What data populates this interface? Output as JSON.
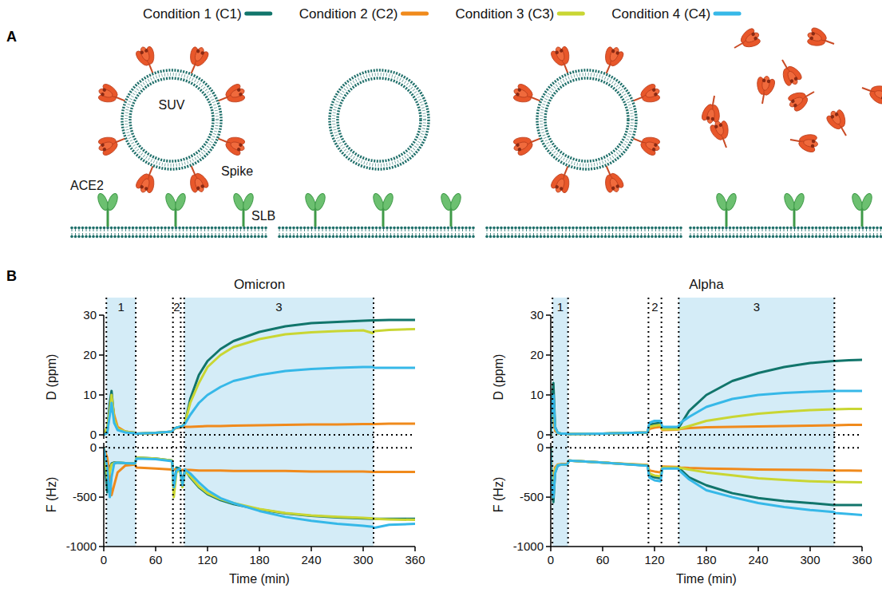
{
  "diagram": {
    "letter": "A",
    "labels": {
      "suv": "SUV",
      "spike": "Spike",
      "ace2": "ACE2",
      "slb": "SLB"
    },
    "panels": [
      {
        "suv": true,
        "spike_on_suv": true,
        "ace2": true,
        "free_spike": false
      },
      {
        "suv": true,
        "spike_on_suv": false,
        "ace2": true,
        "free_spike": false
      },
      {
        "suv": true,
        "spike_on_suv": true,
        "ace2": false,
        "free_spike": false
      },
      {
        "suv": false,
        "spike_on_suv": false,
        "ace2": true,
        "free_spike": true
      }
    ]
  },
  "charts_letter": "B",
  "chart_data": [
    {
      "type": "line",
      "title": "Omicron",
      "x_label": "Time (min)",
      "xlim": [
        0,
        360
      ],
      "xticks": [
        0,
        60,
        120,
        180,
        240,
        300,
        360
      ],
      "x": [
        0,
        4,
        7,
        9,
        12,
        16,
        25,
        36,
        38,
        60,
        79,
        81,
        84,
        88,
        91,
        94,
        100,
        110,
        120,
        135,
        150,
        180,
        210,
        240,
        270,
        300,
        311,
        313,
        330,
        360
      ],
      "phases": [
        {
          "label": "1",
          "start": 3,
          "end": 37,
          "shaded": true
        },
        {
          "label": "2",
          "start": 80,
          "end": 89,
          "shaded": false
        },
        {
          "label": "3",
          "start": 93,
          "end": 312,
          "shaded": true
        }
      ],
      "panels": [
        {
          "y_label": "D (ppm)",
          "ylim": [
            -1,
            30
          ],
          "yticks": [
            0,
            10,
            20,
            30
          ],
          "hline": 0,
          "tick_labels": "y",
          "series": [
            {
              "name": "Condition 1 (C1)",
              "color": "#11756b",
              "values": [
                0,
                0.5,
                8,
                11,
                4,
                1.5,
                0.8,
                0.5,
                0.3,
                0.5,
                0.8,
                1.5,
                1.8,
                2,
                2.2,
                3,
                9,
                15,
                18.5,
                21.5,
                23.5,
                25.8,
                27.2,
                28,
                28.3,
                28.6,
                28.7,
                28.7,
                28.8,
                28.8
              ]
            },
            {
              "name": "Condition 2 (C2)",
              "color": "#f08a1c",
              "values": [
                0,
                1,
                6,
                9,
                5,
                2,
                0.8,
                0.5,
                0.3,
                0.4,
                0.8,
                1.5,
                1.7,
                1.8,
                2,
                2,
                2,
                2.1,
                2.2,
                2.2,
                2.3,
                2.4,
                2.5,
                2.6,
                2.6,
                2.7,
                2.7,
                2.7,
                2.8,
                2.8
              ]
            },
            {
              "name": "Condition 3 (C3)",
              "color": "#c9d633",
              "values": [
                0,
                2,
                6,
                10,
                4,
                1.5,
                0.8,
                0.5,
                0.3,
                0.5,
                0.8,
                1.5,
                1.8,
                2,
                2.2,
                3,
                8,
                13,
                17,
                20,
                22,
                24,
                25.2,
                25.7,
                26,
                26.2,
                25.5,
                26,
                26.3,
                26.5
              ]
            },
            {
              "name": "Condition 4 (C4)",
              "color": "#36b8e8",
              "values": [
                0,
                0.5,
                5,
                8,
                3,
                1.2,
                0.6,
                0.4,
                0.3,
                0.5,
                0.8,
                1.5,
                1.8,
                2,
                2.2,
                2.8,
                5,
                8,
                10,
                12,
                13.5,
                15,
                16,
                16.5,
                16.8,
                17,
                17,
                16.8,
                16.8,
                16.8
              ]
            }
          ]
        },
        {
          "y_label": "F (Hz)",
          "ylim": [
            -1000,
            50
          ],
          "yticks": [
            -1000,
            -500,
            0
          ],
          "hline": 0,
          "series": [
            {
              "name": "Condition 1 (C1)",
              "color": "#11756b",
              "values": [
                0,
                -450,
                -200,
                -160,
                -150,
                -150,
                -155,
                -160,
                -100,
                -110,
                -130,
                -420,
                -200,
                -210,
                -350,
                -220,
                -300,
                -400,
                -470,
                -530,
                -570,
                -625,
                -665,
                -690,
                -705,
                -715,
                -720,
                -720,
                -720,
                -720
              ]
            },
            {
              "name": "Condition 2 (C2)",
              "color": "#f08a1c",
              "values": [
                0,
                -100,
                -300,
                -480,
                -380,
                -250,
                -180,
                -170,
                -200,
                -210,
                -220,
                -220,
                -220,
                -230,
                -225,
                -225,
                -225,
                -230,
                -230,
                -230,
                -235,
                -235,
                -235,
                -240,
                -240,
                -240,
                -245,
                -245,
                -245,
                -245
              ]
            },
            {
              "name": "Condition 3 (C3)",
              "color": "#c9d633",
              "values": [
                0,
                -300,
                -250,
                -170,
                -155,
                -150,
                -155,
                -160,
                -100,
                -110,
                -130,
                -500,
                -250,
                -220,
                -400,
                -230,
                -290,
                -390,
                -460,
                -520,
                -560,
                -620,
                -660,
                -685,
                -700,
                -710,
                -715,
                -720,
                -725,
                -730
              ]
            },
            {
              "name": "Condition 4 (C4)",
              "color": "#36b8e8",
              "values": [
                0,
                -200,
                -500,
                -300,
                -160,
                -150,
                -155,
                -160,
                -110,
                -115,
                -135,
                -400,
                -230,
                -210,
                -380,
                -220,
                -260,
                -350,
                -430,
                -510,
                -560,
                -640,
                -700,
                -740,
                -770,
                -790,
                -800,
                -810,
                -780,
                -770
              ]
            }
          ]
        }
      ]
    },
    {
      "type": "line",
      "title": "Alpha",
      "x_label": "Time (min)",
      "xlim": [
        0,
        360
      ],
      "xticks": [
        0,
        60,
        120,
        180,
        240,
        300,
        360
      ],
      "x": [
        0,
        1,
        3,
        5,
        8,
        12,
        19,
        21,
        60,
        112,
        114,
        120,
        127,
        129,
        147,
        150,
        160,
        180,
        210,
        240,
        270,
        300,
        327,
        329,
        345,
        360
      ],
      "phases": [
        {
          "label": "1",
          "start": 2,
          "end": 20,
          "shaded": true
        },
        {
          "label": "2",
          "start": 113,
          "end": 128,
          "shaded": false
        },
        {
          "label": "3",
          "start": 148,
          "end": 328,
          "shaded": true
        }
      ],
      "panels": [
        {
          "y_label": "D (ppm)",
          "ylim": [
            -1,
            30
          ],
          "yticks": [
            0,
            10,
            20,
            30
          ],
          "hline": 0,
          "tick_labels": "y",
          "series": [
            {
              "name": "Condition 1 (C1)",
              "color": "#11756b",
              "values": [
                0,
                6,
                13,
                2,
                0.5,
                0.3,
                0.3,
                0.2,
                0.3,
                0.6,
                2.5,
                2.8,
                3,
                1.5,
                1.5,
                2.5,
                6,
                10,
                13.5,
                15.5,
                17,
                18,
                18.5,
                18.5,
                18.7,
                18.8
              ]
            },
            {
              "name": "Condition 2 (C2)",
              "color": "#f08a1c",
              "values": [
                0,
                3,
                5,
                1,
                0.4,
                0.3,
                0.3,
                0.2,
                0.3,
                0.6,
                1.5,
                1.8,
                2,
                1.2,
                1.3,
                1.5,
                1.7,
                1.9,
                2,
                2.1,
                2.2,
                2.3,
                2.4,
                2.4,
                2.5,
                2.5
              ]
            },
            {
              "name": "Condition 3 (C3)",
              "color": "#c9d633",
              "values": [
                0,
                4,
                8,
                1.5,
                0.5,
                0.3,
                0.3,
                0.2,
                0.3,
                0.6,
                2,
                2.3,
                2.5,
                1.4,
                1.4,
                1.6,
                2.2,
                3.5,
                4.5,
                5.3,
                5.8,
                6.2,
                6.4,
                6.4,
                6.5,
                6.5
              ]
            },
            {
              "name": "Condition 4 (C4)",
              "color": "#36b8e8",
              "values": [
                0,
                5,
                10,
                1.8,
                0.5,
                0.3,
                0.3,
                0.2,
                0.3,
                0.6,
                3,
                3.5,
                3.5,
                2,
                2,
                3,
                4.5,
                7,
                9,
                10,
                10.5,
                10.8,
                11,
                11,
                11,
                11
              ]
            }
          ]
        },
        {
          "y_label": "F (Hz)",
          "ylim": [
            -1000,
            50
          ],
          "yticks": [
            -1000,
            -500,
            0
          ],
          "hline": 0,
          "series": [
            {
              "name": "Condition 1 (C1)",
              "color": "#11756b",
              "values": [
                0,
                -300,
                -550,
                -250,
                -180,
                -170,
                -170,
                -130,
                -150,
                -180,
                -280,
                -300,
                -310,
                -200,
                -200,
                -220,
                -300,
                -380,
                -460,
                -510,
                -540,
                -560,
                -580,
                -580,
                -580,
                -580
              ]
            },
            {
              "name": "Condition 2 (C2)",
              "color": "#f08a1c",
              "values": [
                0,
                -200,
                -400,
                -200,
                -170,
                -165,
                -165,
                -130,
                -150,
                -175,
                -230,
                -240,
                -250,
                -190,
                -195,
                -200,
                -205,
                -210,
                -215,
                -220,
                -222,
                -225,
                -228,
                -230,
                -230,
                -232
              ]
            },
            {
              "name": "Condition 3 (C3)",
              "color": "#c9d633",
              "values": [
                0,
                -250,
                -450,
                -220,
                -175,
                -170,
                -170,
                -130,
                -150,
                -178,
                -260,
                -280,
                -290,
                -200,
                -200,
                -205,
                -220,
                -250,
                -280,
                -310,
                -325,
                -340,
                -345,
                -345,
                -348,
                -350
              ]
            },
            {
              "name": "Condition 4 (C4)",
              "color": "#36b8e8",
              "values": [
                0,
                -350,
                -500,
                -260,
                -180,
                -170,
                -170,
                -130,
                -150,
                -182,
                -300,
                -330,
                -340,
                -210,
                -210,
                -240,
                -320,
                -430,
                -500,
                -560,
                -600,
                -630,
                -650,
                -660,
                -670,
                -680
              ]
            }
          ]
        }
      ]
    }
  ]
}
